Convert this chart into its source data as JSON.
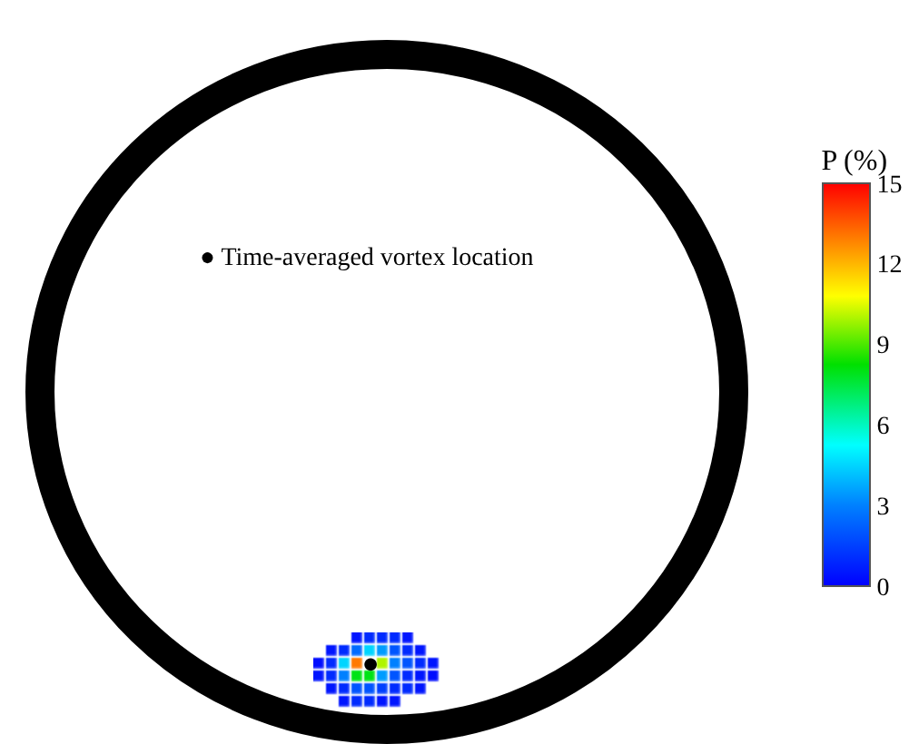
{
  "chart_data": {
    "type": "heatmap",
    "clabel": "P (%)",
    "categories": [
      null,
      null,
      null,
      null,
      null,
      null,
      null,
      null,
      null,
      null
    ],
    "y_categories": [
      null,
      null,
      null,
      null,
      null,
      null
    ],
    "cells": [
      [
        null,
        null,
        null,
        0.5,
        1,
        1,
        1,
        0.5,
        null,
        null
      ],
      [
        null,
        0.5,
        1,
        2.5,
        4.5,
        3.5,
        2,
        1,
        0.5,
        null
      ],
      [
        0.3,
        1,
        4.5,
        13,
        null,
        10,
        3,
        2,
        1,
        0.5
      ],
      [
        0.5,
        1,
        3,
        8,
        8,
        3.5,
        2,
        1,
        0.5,
        0.3
      ],
      [
        null,
        0.5,
        1,
        2,
        2,
        1.5,
        1,
        1,
        0.5,
        null
      ],
      [
        null,
        null,
        0.5,
        1,
        1,
        0.5,
        0.5,
        null,
        null,
        null
      ]
    ],
    "cell_labels": [
      [
        null,
        null,
        null,
        null,
        null,
        null,
        null,
        null,
        null,
        null
      ],
      [
        null,
        null,
        null,
        null,
        null,
        null,
        null,
        null,
        null,
        null
      ],
      [
        null,
        null,
        null,
        null,
        "●",
        null,
        null,
        null,
        null,
        null
      ],
      [
        null,
        null,
        null,
        null,
        null,
        null,
        null,
        null,
        null,
        null
      ],
      [
        null,
        null,
        null,
        null,
        null,
        null,
        null,
        null,
        null,
        null
      ],
      [
        null,
        null,
        null,
        null,
        null,
        null,
        null,
        null,
        null,
        null
      ]
    ],
    "annotations": [
      "● Time-averaged vortex location"
    ],
    "clim": [
      0,
      15
    ],
    "cticks": [
      0,
      3,
      6,
      9,
      12,
      15
    ]
  }
}
